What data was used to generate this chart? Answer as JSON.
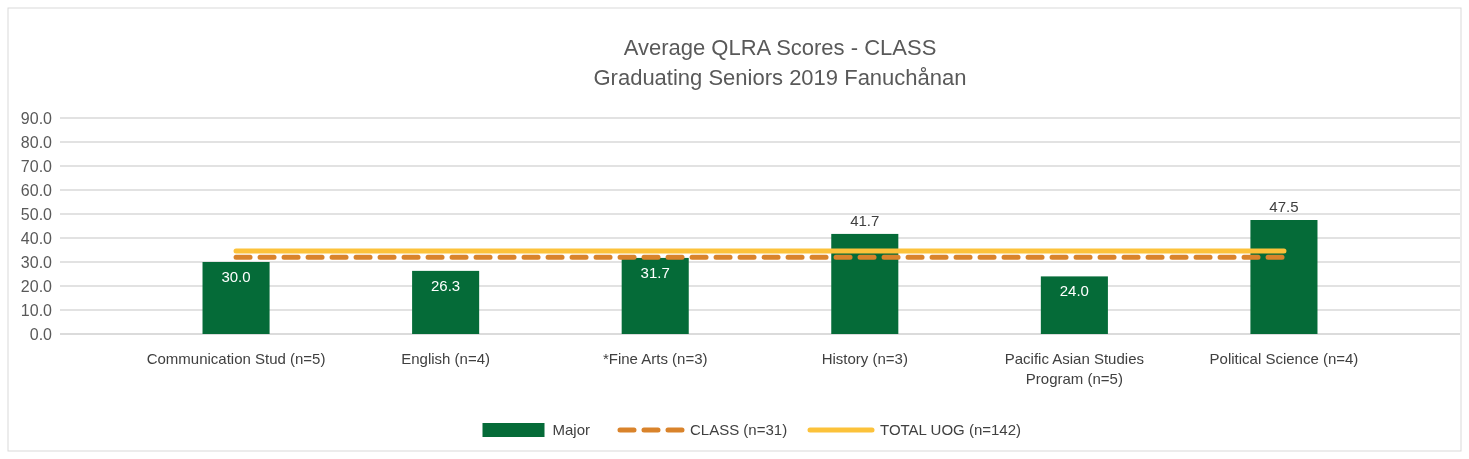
{
  "chart_data": {
    "type": "bar",
    "title": "Average QLRA Scores - CLASS",
    "subtitle": "Graduating Seniors 2019 Fanuchånan",
    "categories": [
      "Communication Stud (n=5)",
      "English (n=4)",
      "*Fine Arts (n=3)",
      "History (n=3)",
      "Pacific Asian Studies Program (n=5)",
      "Political Science (n=4)"
    ],
    "series": [
      {
        "name": "Major",
        "color": "#056b38",
        "values": [
          30.0,
          26.3,
          31.7,
          41.7,
          24.0,
          47.5
        ],
        "value_labels": [
          "30.0",
          "26.3",
          "31.7",
          "41.7",
          "24.0",
          "47.5"
        ]
      },
      {
        "name": "CLASS (n=31)",
        "type": "line",
        "color": "#d9832b",
        "line_style": "dashed",
        "values": [
          32.0,
          32.0,
          32.0,
          32.0,
          32.0,
          32.0
        ]
      },
      {
        "name": "TOTAL UOG (n=142)",
        "type": "line",
        "color": "#fcc23a",
        "line_style": "solid",
        "values": [
          34.6,
          34.6,
          34.6,
          34.6,
          34.6,
          34.6
        ]
      }
    ],
    "ylim": [
      0,
      90
    ],
    "yticks": [
      {
        "value": 0,
        "label": "0.0"
      },
      {
        "value": 10,
        "label": "10.0"
      },
      {
        "value": 20,
        "label": "20.0"
      },
      {
        "value": 30,
        "label": "30.0"
      },
      {
        "value": 40,
        "label": "40.0"
      },
      {
        "value": 50,
        "label": "50.0"
      },
      {
        "value": 60,
        "label": "60.0"
      },
      {
        "value": 70,
        "label": "70.0"
      },
      {
        "value": 80,
        "label": "80.0"
      },
      {
        "value": 90,
        "label": "90.0"
      }
    ],
    "grid": "y",
    "legend": "bottom"
  }
}
